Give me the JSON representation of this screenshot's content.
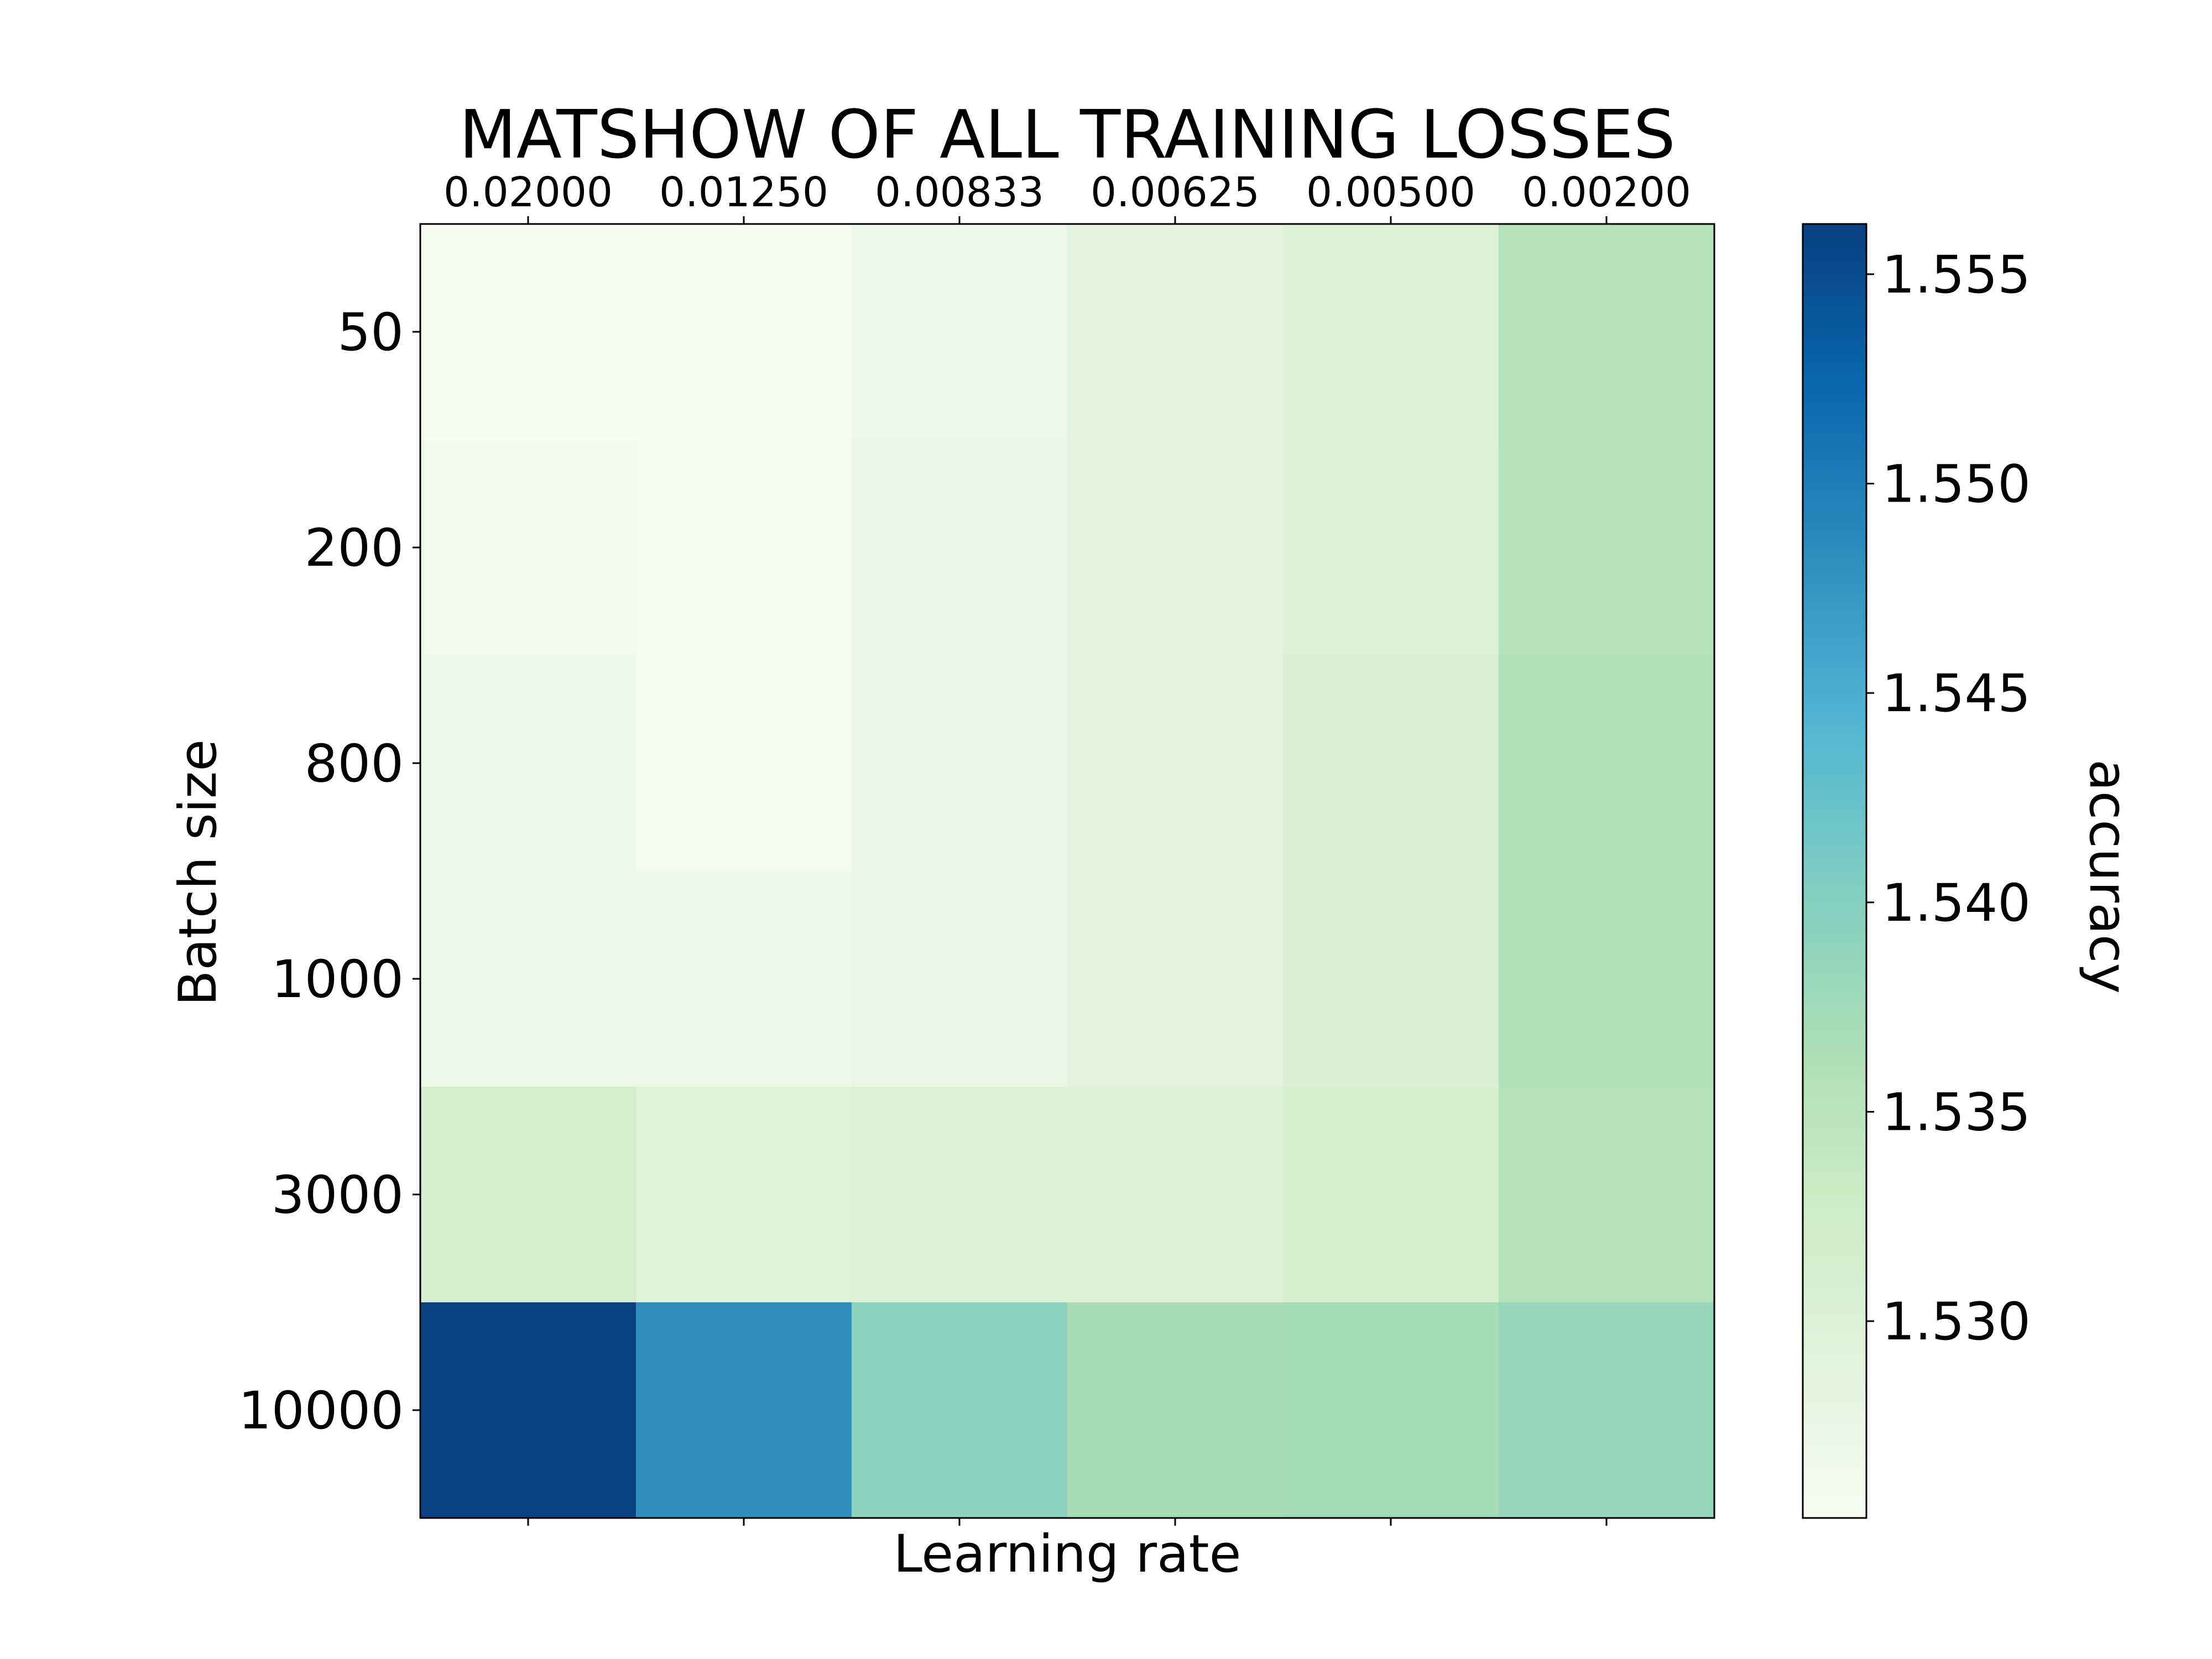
{
  "chart_data": {
    "type": "heatmap",
    "title": "MATSHOW OF ALL TRAINING LOSSES",
    "xlabel": "Learning rate",
    "ylabel": "Batch size",
    "x_categories": [
      "0.02000",
      "0.01250",
      "0.00833",
      "0.00625",
      "0.00500",
      "0.00200"
    ],
    "y_categories": [
      "50",
      "200",
      "800",
      "1000",
      "3000",
      "10000"
    ],
    "values": [
      [
        1.5255,
        1.5257,
        1.527,
        1.5285,
        1.53,
        1.5358
      ],
      [
        1.5262,
        1.5258,
        1.5272,
        1.5287,
        1.5302,
        1.5358
      ],
      [
        1.5268,
        1.5258,
        1.5273,
        1.5288,
        1.5304,
        1.5359
      ],
      [
        1.5266,
        1.5266,
        1.5275,
        1.5286,
        1.5304,
        1.5359
      ],
      [
        1.5315,
        1.5298,
        1.53,
        1.53,
        1.5312,
        1.5357
      ],
      [
        1.556,
        1.5483,
        1.5393,
        1.537,
        1.5372,
        1.5385
      ]
    ],
    "colorbar": {
      "label": "accuracy",
      "vmin": 1.5253,
      "vmax": 1.5562,
      "ticks": [
        1.555,
        1.55,
        1.545,
        1.54,
        1.535,
        1.53
      ],
      "tick_labels": [
        "1.555",
        "1.550",
        "1.545",
        "1.540",
        "1.535",
        "1.530"
      ],
      "colormap": "GnBu",
      "stops": [
        "#f7fcf0",
        "#e0f3db",
        "#ccebc5",
        "#a8ddb5",
        "#7bccc4",
        "#4eb3d3",
        "#2b8cbe",
        "#0868ac",
        "#084081"
      ]
    },
    "grid": false
  }
}
